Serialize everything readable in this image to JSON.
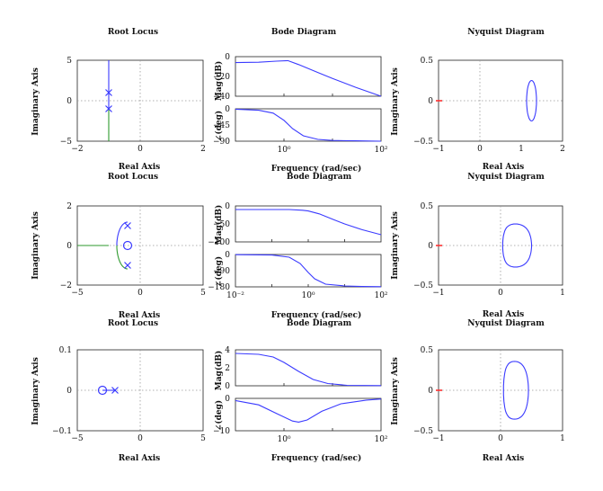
{
  "figure": {
    "rows": [
      {
        "root_locus": {
          "title": "Root Locus",
          "xlabel": "Real Axis",
          "ylabel": "Imaginary Axis"
        },
        "bode": {
          "title": "Bode Diagram",
          "xlabel": "Frequency (rad/sec)",
          "mag_label": "Mag(dB)",
          "phase_label": "∠(deg)"
        },
        "nyquist": {
          "title": "Nyquist Diagram",
          "xlabel": "Real Axis",
          "ylabel": "Imaginary Axis"
        }
      },
      {
        "root_locus": {
          "title": "Root Locus",
          "xlabel": "Real Axis",
          "ylabel": "Imaginary Axis"
        },
        "bode": {
          "title": "Bode Diagram",
          "xlabel": "Frequency (rad/sec)",
          "mag_label": "Mag(dB)",
          "phase_label": "∠(deg)"
        },
        "nyquist": {
          "title": "Nyquist Diagram",
          "xlabel": "Real Axis",
          "ylabel": "Imaginary Axis"
        }
      },
      {
        "root_locus": {
          "title": "Root Locus",
          "xlabel": "Real Axis",
          "ylabel": "Imaginary Axis"
        },
        "bode": {
          "title": "Bode Diagram",
          "xlabel": "Frequency (rad/sec)",
          "mag_label": "Mag(dB)",
          "phase_label": "∠(deg)"
        },
        "nyquist": {
          "title": "Nyquist Diagram",
          "xlabel": "Real Axis",
          "ylabel": "Imaginary Axis"
        }
      }
    ]
  },
  "colors": {
    "locus_blue": "#3a3aff",
    "locus_green": "#2e9a2e",
    "critical_red": "#ff3030",
    "axis": "#222222",
    "grid": "#999999"
  },
  "chart_data": [
    {
      "id": "r1-rootlocus",
      "type": "line",
      "title": "Root Locus",
      "xlabel": "Real Axis",
      "ylabel": "Imaginary Axis",
      "xlim": [
        -2,
        2
      ],
      "ylim": [
        -5,
        5
      ],
      "xticks": [
        "−2",
        "0",
        "2"
      ],
      "yticks": [
        "5",
        "0",
        "−5"
      ],
      "poles": [
        [
          -1,
          1
        ],
        [
          -1,
          -1
        ]
      ],
      "zeros": [],
      "branches": [
        {
          "color": "blue",
          "x": [
            -1,
            -1
          ],
          "y": [
            1,
            5
          ]
        },
        {
          "color": "blue",
          "x": [
            -1,
            -1
          ],
          "y": [
            -1,
            1
          ]
        },
        {
          "color": "green",
          "x": [
            -1,
            -1
          ],
          "y": [
            -1,
            -5
          ]
        }
      ]
    },
    {
      "id": "r1-bode-mag",
      "type": "line",
      "ylabel": "Mag(dB)",
      "xscale": "log",
      "xlim": [
        0.1,
        100
      ],
      "ylim": [
        -40,
        0
      ],
      "yticks": [
        "0",
        "−20",
        "−40"
      ],
      "x": [
        0.1,
        0.3,
        0.7,
        1.2,
        2,
        5,
        10,
        30,
        100
      ],
      "y": [
        -6,
        -5.6,
        -4.5,
        -4,
        -8,
        -16,
        -22,
        -31,
        -40
      ]
    },
    {
      "id": "r1-bode-phase",
      "type": "line",
      "ylabel": "∠(deg)",
      "xlabel": "Frequency (rad/sec)",
      "xscale": "log",
      "xlim": [
        0.1,
        100
      ],
      "ylim": [
        -90,
        0
      ],
      "yticks": [
        "0",
        "−45",
        "−90"
      ],
      "xticks": [
        "10⁰",
        "10²"
      ],
      "x": [
        0.1,
        0.3,
        0.6,
        1,
        1.5,
        2.5,
        5,
        10,
        30,
        100
      ],
      "y": [
        -1,
        -4,
        -12,
        -32,
        -55,
        -75,
        -85,
        -88,
        -89,
        -90
      ]
    },
    {
      "id": "r1-nyquist",
      "type": "line",
      "title": "Nyquist Diagram",
      "xlabel": "Real Axis",
      "ylabel": "Imaginary Axis",
      "xlim": [
        -1,
        2
      ],
      "ylim": [
        -0.5,
        0.5
      ],
      "xticks": [
        "−1",
        "0",
        "1",
        "2"
      ],
      "yticks": [
        "0.5",
        "0",
        "−0.5"
      ],
      "center": [
        1.25,
        0
      ],
      "radius_x": 0.12,
      "radius_y": 0.25,
      "critical_point": [
        -1,
        0
      ]
    },
    {
      "id": "r2-rootlocus",
      "type": "line",
      "title": "Root Locus",
      "xlabel": "Real Axis",
      "ylabel": "Imaginary Axis",
      "xlim": [
        -5,
        5
      ],
      "ylim": [
        -2,
        2
      ],
      "xticks": [
        "−5",
        "0",
        "5"
      ],
      "yticks": [
        "2",
        "0",
        "−2"
      ],
      "poles": [
        [
          -1,
          1
        ],
        [
          -1,
          -1
        ]
      ],
      "zeros": [
        [
          -1,
          0
        ]
      ],
      "branches": [
        {
          "color": "blue",
          "arc": "upper",
          "center": [
            -1,
            0
          ],
          "r": 1.5
        },
        {
          "color": "green",
          "arc": "lower",
          "center": [
            -1,
            0
          ],
          "r": 1.5
        },
        {
          "color": "green",
          "x": [
            -2.5,
            -5
          ],
          "y": [
            0,
            0
          ]
        }
      ]
    },
    {
      "id": "r2-bode-mag",
      "type": "line",
      "ylabel": "Mag(dB)",
      "xscale": "log",
      "xlim": [
        0.01,
        100
      ],
      "ylim": [
        -100,
        0
      ],
      "yticks": [
        "0",
        "−50",
        "−100"
      ],
      "x": [
        0.01,
        0.1,
        0.3,
        0.7,
        1,
        2,
        5,
        10,
        30,
        100
      ],
      "y": [
        -10,
        -10,
        -10,
        -12,
        -14,
        -22,
        -38,
        -50,
        -66,
        -80
      ]
    },
    {
      "id": "r2-bode-phase",
      "type": "line",
      "ylabel": "∠(deg)",
      "xlabel": "Frequency (rad/sec)",
      "xscale": "log",
      "xlim": [
        0.01,
        100
      ],
      "ylim": [
        -180,
        0
      ],
      "yticks": [
        "0",
        "−90",
        "−180"
      ],
      "xticks": [
        "10⁻²",
        "10⁰",
        "10²"
      ],
      "x": [
        0.01,
        0.1,
        0.3,
        0.6,
        1,
        1.5,
        3,
        10,
        30,
        100
      ],
      "y": [
        -1,
        -3,
        -15,
        -50,
        -100,
        -135,
        -165,
        -175,
        -178,
        -179
      ]
    },
    {
      "id": "r2-nyquist",
      "type": "line",
      "title": "Nyquist Diagram",
      "xlabel": "Real Axis",
      "ylabel": "Imaginary Axis",
      "xlim": [
        -1,
        1
      ],
      "ylim": [
        -0.5,
        0.5
      ],
      "xticks": [
        "−1",
        "0",
        "1"
      ],
      "yticks": [
        "0.5",
        "0",
        "−0.5"
      ],
      "shape": "cardioid",
      "x_range": [
        -0.02,
        0.5
      ],
      "y_range": [
        -0.32,
        0.32
      ],
      "critical_point": [
        -1,
        0
      ]
    },
    {
      "id": "r3-rootlocus",
      "type": "line",
      "title": "Root Locus",
      "xlabel": "Real Axis",
      "ylabel": "Imaginary Axis",
      "xlim": [
        -5,
        5
      ],
      "ylim": [
        -0.1,
        0.1
      ],
      "xticks": [
        "−5",
        "0",
        "5"
      ],
      "yticks": [
        "0.1",
        "0",
        "−0.1"
      ],
      "poles": [
        [
          -2,
          0
        ]
      ],
      "zeros": [
        [
          -3,
          0
        ]
      ],
      "branches": [
        {
          "color": "blue",
          "x": [
            -3,
            -2
          ],
          "y": [
            0,
            0
          ]
        }
      ]
    },
    {
      "id": "r3-bode-mag",
      "type": "line",
      "ylabel": "Mag(dB)",
      "xscale": "log",
      "xlim": [
        0.1,
        100
      ],
      "ylim": [
        0,
        4
      ],
      "yticks": [
        "4",
        "2",
        "0"
      ],
      "x": [
        0.1,
        0.3,
        0.6,
        1,
        2,
        4,
        8,
        20,
        100
      ],
      "y": [
        3.6,
        3.5,
        3.2,
        2.6,
        1.6,
        0.7,
        0.25,
        0.05,
        0.02
      ]
    },
    {
      "id": "r3-bode-phase",
      "type": "line",
      "ylabel": "∠(deg)",
      "xlabel": "Frequency (rad/sec)",
      "xscale": "log",
      "xlim": [
        0.1,
        100
      ],
      "ylim": [
        -15,
        0
      ],
      "yticks": [
        "0",
        "−10"
      ],
      "xticks": [
        "10⁰",
        "10²"
      ],
      "x": [
        0.1,
        0.3,
        0.7,
        1.5,
        2,
        3,
        6,
        15,
        50,
        100
      ],
      "y": [
        -1,
        -3,
        -7,
        -10.5,
        -11,
        -10,
        -6,
        -2.5,
        -0.8,
        -0.3
      ]
    },
    {
      "id": "r3-nyquist",
      "type": "line",
      "title": "Nyquist Diagram",
      "xlabel": "Real Axis",
      "ylabel": "Imaginary Axis",
      "xlim": [
        -1,
        1
      ],
      "ylim": [
        -0.5,
        0.5
      ],
      "xticks": [
        "−1",
        "0",
        "1"
      ],
      "yticks": [
        "0.5",
        "0",
        "−0.5"
      ],
      "shape": "cardioid",
      "x_range": [
        0,
        0.45
      ],
      "y_range": [
        -0.42,
        0.42
      ],
      "critical_point": [
        -1,
        0
      ]
    }
  ]
}
